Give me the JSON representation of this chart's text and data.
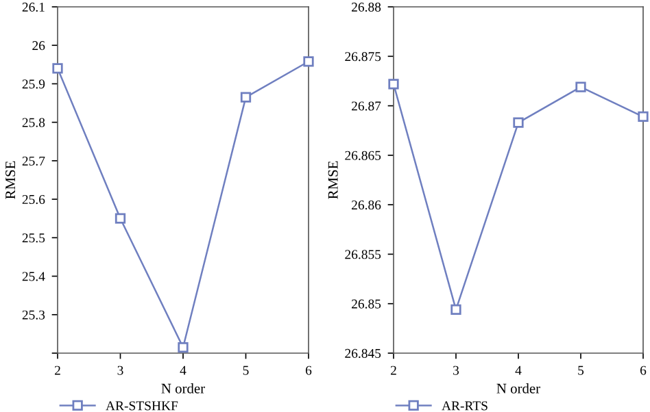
{
  "chart_data": [
    {
      "type": "line",
      "xlabel": "N order",
      "ylabel": "RMSE",
      "x": [
        2,
        3,
        4,
        5,
        6
      ],
      "xlim": [
        2,
        6
      ],
      "xticks": [
        2,
        3,
        4,
        5,
        6
      ],
      "ylim": [
        25.2,
        26.1
      ],
      "yticks": [
        {
          "value": 25.2,
          "label": null
        },
        25.3,
        25.4,
        25.5,
        25.6,
        25.7,
        25.8,
        25.9,
        26,
        26.1
      ],
      "series": [
        {
          "name": "AR-STSHKF",
          "color": "#6f7fc0",
          "values": [
            25.94,
            25.55,
            25.215,
            25.865,
            25.958
          ]
        }
      ],
      "marker": "square",
      "line_style": "solid",
      "grid": false,
      "legend": "bottom left"
    },
    {
      "type": "line",
      "xlabel": "N order",
      "ylabel": "RMSE",
      "x": [
        2,
        3,
        4,
        5,
        6
      ],
      "xlim": [
        2,
        6
      ],
      "xticks": [
        2,
        3,
        4,
        5,
        6
      ],
      "ylim": [
        26.845,
        26.88
      ],
      "yticks": [
        26.845,
        26.85,
        26.855,
        26.86,
        26.865,
        26.87,
        26.875,
        26.88
      ],
      "series": [
        {
          "name": "AR-RTS",
          "color": "#6f7fc0",
          "values": [
            26.8722,
            26.8494,
            26.8683,
            26.8719,
            26.8689
          ]
        }
      ],
      "marker": "square",
      "line_style": "solid",
      "grid": false,
      "legend": "bottom left"
    }
  ]
}
